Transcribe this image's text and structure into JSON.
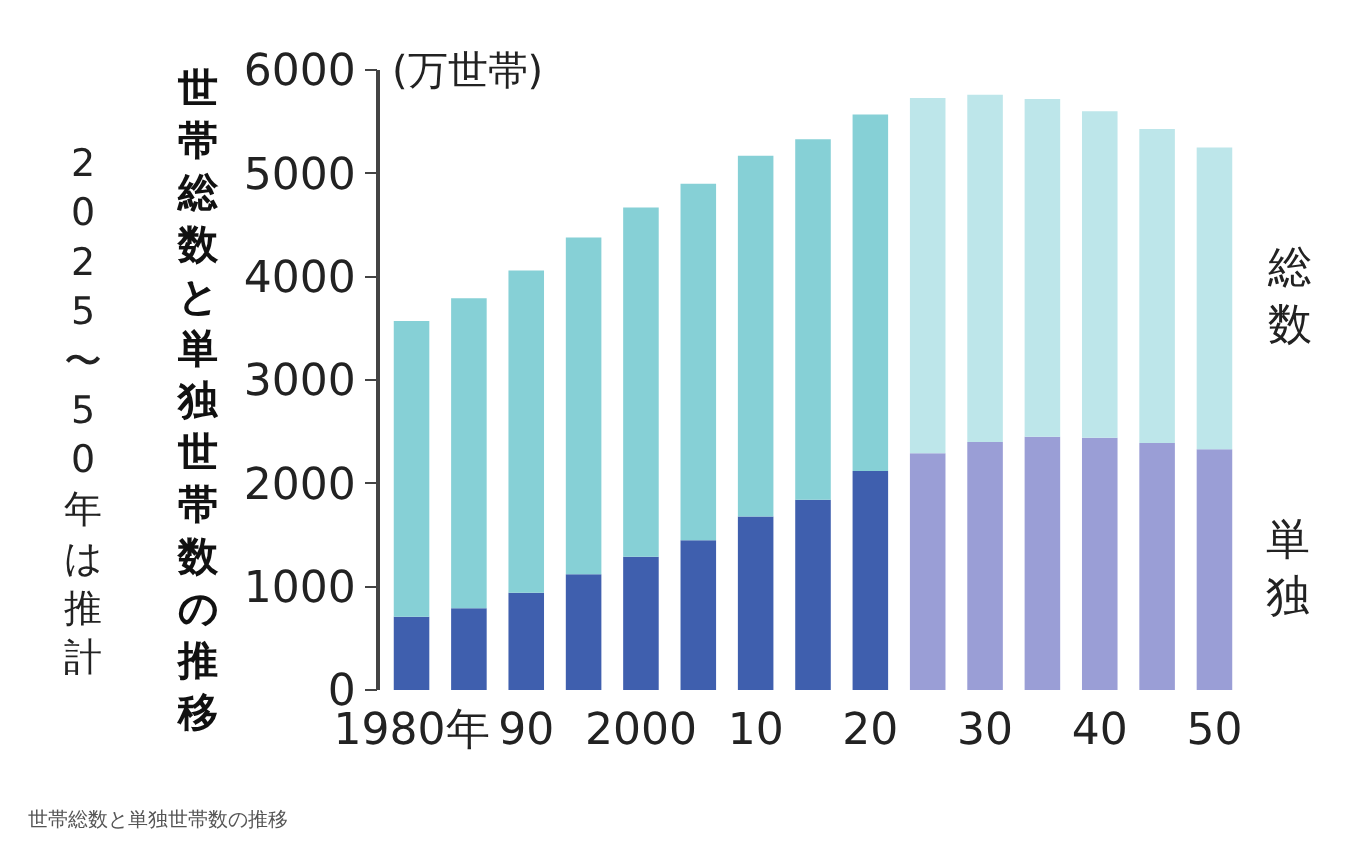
{
  "chart_data": {
    "type": "bar",
    "stacked": true,
    "title": "世帯総数と単独世帯数の推移",
    "ylabel": "(万世帯)",
    "annotations": [
      "2025〜50年は推計",
      "世帯総数と単独世帯数の推移"
    ],
    "categories": [
      "1980年",
      null,
      "90",
      null,
      "2000",
      null,
      "10",
      null,
      "20",
      null,
      "30",
      null,
      "40",
      null,
      "50"
    ],
    "series": [
      {
        "name": "単独",
        "colors": [
          "#3f5fae",
          "#3f5fae",
          "#3f5fae",
          "#3f5fae",
          "#3f5fae",
          "#3f5fae",
          "#3f5fae",
          "#3f5fae",
          "#3f5fae",
          "#9a9ed6",
          "#9a9ed6",
          "#9a9ed6",
          "#9a9ed6",
          "#9a9ed6",
          "#9a9ed6"
        ],
        "values": [
          710,
          790,
          940,
          1120,
          1290,
          1450,
          1680,
          1840,
          2120,
          2290,
          2400,
          2450,
          2440,
          2390,
          2330
        ]
      },
      {
        "name": "総数",
        "colors": [
          "#86d0d6",
          "#86d0d6",
          "#86d0d6",
          "#86d0d6",
          "#86d0d6",
          "#86d0d6",
          "#86d0d6",
          "#86d0d6",
          "#86d0d6",
          "#bde6ea",
          "#bde6ea",
          "#bde6ea",
          "#bde6ea",
          "#bde6ea",
          "#bde6ea"
        ],
        "values": [
          2860,
          3000,
          3120,
          3260,
          3380,
          3450,
          3490,
          3490,
          3450,
          3440,
          3360,
          3270,
          3160,
          3040,
          2920
        ]
      }
    ],
    "ylim": [
      0,
      6000
    ],
    "yticks": [
      0,
      1000,
      2000,
      3000,
      4000,
      5000,
      6000
    ],
    "legend": false
  }
}
